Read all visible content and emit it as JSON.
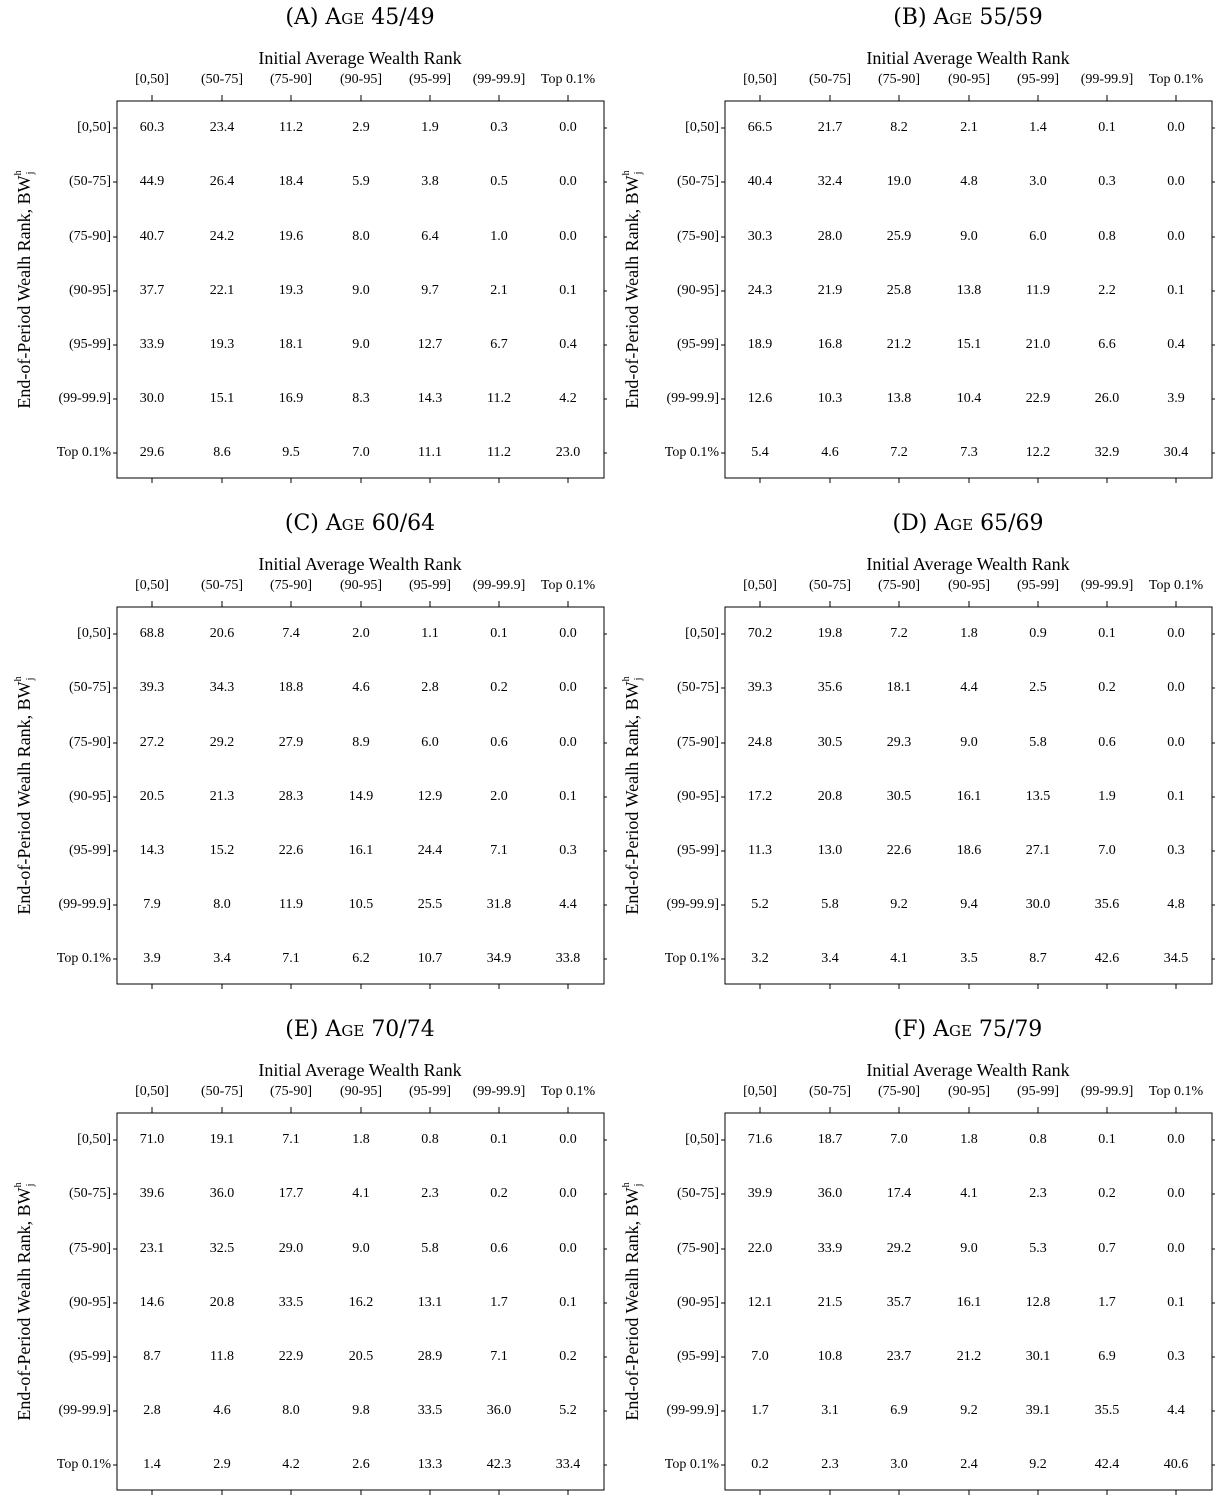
{
  "chart_data": [
    {
      "type": "table",
      "title": "(A) Age 45/49",
      "xlabel": "Initial Average Wealth Rank",
      "ylabel": "End-of-Period Wealh Rank, BW",
      "ylabel_sup": "h",
      "ylabel_sub": "j",
      "columns": [
        "[0,50]",
        "(50-75]",
        "(75-90]",
        "(90-95]",
        "(95-99]",
        "(99-99.9]",
        "Top 0.1%"
      ],
      "rows": [
        "[0,50]",
        "(50-75]",
        "(75-90]",
        "(90-95]",
        "(95-99]",
        "(99-99.9]",
        "Top 0.1%"
      ],
      "values": [
        [
          "60.3",
          "23.4",
          "11.2",
          "2.9",
          "1.9",
          "0.3",
          "0.0"
        ],
        [
          "44.9",
          "26.4",
          "18.4",
          "5.9",
          "3.8",
          "0.5",
          "0.0"
        ],
        [
          "40.7",
          "24.2",
          "19.6",
          "8.0",
          "6.4",
          "1.0",
          "0.0"
        ],
        [
          "37.7",
          "22.1",
          "19.3",
          "9.0",
          "9.7",
          "2.1",
          "0.1"
        ],
        [
          "33.9",
          "19.3",
          "18.1",
          "9.0",
          "12.7",
          "6.7",
          "0.4"
        ],
        [
          "30.0",
          "15.1",
          "16.9",
          "8.3",
          "14.3",
          "11.2",
          "4.2"
        ],
        [
          "29.6",
          "8.6",
          "9.5",
          "7.0",
          "11.1",
          "11.2",
          "23.0"
        ]
      ]
    },
    {
      "type": "table",
      "title": "(B) Age 55/59",
      "xlabel": "Initial Average Wealth Rank",
      "ylabel": "End-of-Period Wealh Rank, BW",
      "ylabel_sup": "h",
      "ylabel_sub": "j",
      "columns": [
        "[0,50]",
        "(50-75]",
        "(75-90]",
        "(90-95]",
        "(95-99]",
        "(99-99.9]",
        "Top 0.1%"
      ],
      "rows": [
        "[0,50]",
        "(50-75]",
        "(75-90]",
        "(90-95]",
        "(95-99]",
        "(99-99.9]",
        "Top 0.1%"
      ],
      "values": [
        [
          "66.5",
          "21.7",
          "8.2",
          "2.1",
          "1.4",
          "0.1",
          "0.0"
        ],
        [
          "40.4",
          "32.4",
          "19.0",
          "4.8",
          "3.0",
          "0.3",
          "0.0"
        ],
        [
          "30.3",
          "28.0",
          "25.9",
          "9.0",
          "6.0",
          "0.8",
          "0.0"
        ],
        [
          "24.3",
          "21.9",
          "25.8",
          "13.8",
          "11.9",
          "2.2",
          "0.1"
        ],
        [
          "18.9",
          "16.8",
          "21.2",
          "15.1",
          "21.0",
          "6.6",
          "0.4"
        ],
        [
          "12.6",
          "10.3",
          "13.8",
          "10.4",
          "22.9",
          "26.0",
          "3.9"
        ],
        [
          "5.4",
          "4.6",
          "7.2",
          "7.3",
          "12.2",
          "32.9",
          "30.4"
        ]
      ]
    },
    {
      "type": "table",
      "title": "(C) Age 60/64",
      "xlabel": "Initial Average Wealth Rank",
      "ylabel": "End-of-Period Wealh Rank, BW",
      "ylabel_sup": "h",
      "ylabel_sub": "j",
      "columns": [
        "[0,50]",
        "(50-75]",
        "(75-90]",
        "(90-95]",
        "(95-99]",
        "(99-99.9]",
        "Top 0.1%"
      ],
      "rows": [
        "[0,50]",
        "(50-75]",
        "(75-90]",
        "(90-95]",
        "(95-99]",
        "(99-99.9]",
        "Top 0.1%"
      ],
      "values": [
        [
          "68.8",
          "20.6",
          "7.4",
          "2.0",
          "1.1",
          "0.1",
          "0.0"
        ],
        [
          "39.3",
          "34.3",
          "18.8",
          "4.6",
          "2.8",
          "0.2",
          "0.0"
        ],
        [
          "27.2",
          "29.2",
          "27.9",
          "8.9",
          "6.0",
          "0.6",
          "0.0"
        ],
        [
          "20.5",
          "21.3",
          "28.3",
          "14.9",
          "12.9",
          "2.0",
          "0.1"
        ],
        [
          "14.3",
          "15.2",
          "22.6",
          "16.1",
          "24.4",
          "7.1",
          "0.3"
        ],
        [
          "7.9",
          "8.0",
          "11.9",
          "10.5",
          "25.5",
          "31.8",
          "4.4"
        ],
        [
          "3.9",
          "3.4",
          "7.1",
          "6.2",
          "10.7",
          "34.9",
          "33.8"
        ]
      ]
    },
    {
      "type": "table",
      "title": "(D) Age 65/69",
      "xlabel": "Initial Average Wealth Rank",
      "ylabel": "End-of-Period Wealh Rank, BW",
      "ylabel_sup": "h",
      "ylabel_sub": "j",
      "columns": [
        "[0,50]",
        "(50-75]",
        "(75-90]",
        "(90-95]",
        "(95-99]",
        "(99-99.9]",
        "Top 0.1%"
      ],
      "rows": [
        "[0,50]",
        "(50-75]",
        "(75-90]",
        "(90-95]",
        "(95-99]",
        "(99-99.9]",
        "Top 0.1%"
      ],
      "values": [
        [
          "70.2",
          "19.8",
          "7.2",
          "1.8",
          "0.9",
          "0.1",
          "0.0"
        ],
        [
          "39.3",
          "35.6",
          "18.1",
          "4.4",
          "2.5",
          "0.2",
          "0.0"
        ],
        [
          "24.8",
          "30.5",
          "29.3",
          "9.0",
          "5.8",
          "0.6",
          "0.0"
        ],
        [
          "17.2",
          "20.8",
          "30.5",
          "16.1",
          "13.5",
          "1.9",
          "0.1"
        ],
        [
          "11.3",
          "13.0",
          "22.6",
          "18.6",
          "27.1",
          "7.0",
          "0.3"
        ],
        [
          "5.2",
          "5.8",
          "9.2",
          "9.4",
          "30.0",
          "35.6",
          "4.8"
        ],
        [
          "3.2",
          "3.4",
          "4.1",
          "3.5",
          "8.7",
          "42.6",
          "34.5"
        ]
      ]
    },
    {
      "type": "table",
      "title": "(E) Age 70/74",
      "xlabel": "Initial Average Wealth Rank",
      "ylabel": "End-of-Period Wealh Rank, BW",
      "ylabel_sup": "h",
      "ylabel_sub": "j",
      "columns": [
        "[0,50]",
        "(50-75]",
        "(75-90]",
        "(90-95]",
        "(95-99]",
        "(99-99.9]",
        "Top 0.1%"
      ],
      "rows": [
        "[0,50]",
        "(50-75]",
        "(75-90]",
        "(90-95]",
        "(95-99]",
        "(99-99.9]",
        "Top 0.1%"
      ],
      "values": [
        [
          "71.0",
          "19.1",
          "7.1",
          "1.8",
          "0.8",
          "0.1",
          "0.0"
        ],
        [
          "39.6",
          "36.0",
          "17.7",
          "4.1",
          "2.3",
          "0.2",
          "0.0"
        ],
        [
          "23.1",
          "32.5",
          "29.0",
          "9.0",
          "5.8",
          "0.6",
          "0.0"
        ],
        [
          "14.6",
          "20.8",
          "33.5",
          "16.2",
          "13.1",
          "1.7",
          "0.1"
        ],
        [
          "8.7",
          "11.8",
          "22.9",
          "20.5",
          "28.9",
          "7.1",
          "0.2"
        ],
        [
          "2.8",
          "4.6",
          "8.0",
          "9.8",
          "33.5",
          "36.0",
          "5.2"
        ],
        [
          "1.4",
          "2.9",
          "4.2",
          "2.6",
          "13.3",
          "42.3",
          "33.4"
        ]
      ]
    },
    {
      "type": "table",
      "title": "(F) Age 75/79",
      "xlabel": "Initial Average Wealth Rank",
      "ylabel": "End-of-Period Wealh Rank, BW",
      "ylabel_sup": "h",
      "ylabel_sub": "j",
      "columns": [
        "[0,50]",
        "(50-75]",
        "(75-90]",
        "(90-95]",
        "(95-99]",
        "(99-99.9]",
        "Top 0.1%"
      ],
      "rows": [
        "[0,50]",
        "(50-75]",
        "(75-90]",
        "(90-95]",
        "(95-99]",
        "(99-99.9]",
        "Top 0.1%"
      ],
      "values": [
        [
          "71.6",
          "18.7",
          "7.0",
          "1.8",
          "0.8",
          "0.1",
          "0.0"
        ],
        [
          "39.9",
          "36.0",
          "17.4",
          "4.1",
          "2.3",
          "0.2",
          "0.0"
        ],
        [
          "22.0",
          "33.9",
          "29.2",
          "9.0",
          "5.3",
          "0.7",
          "0.0"
        ],
        [
          "12.1",
          "21.5",
          "35.7",
          "16.1",
          "12.8",
          "1.7",
          "0.1"
        ],
        [
          "7.0",
          "10.8",
          "23.7",
          "21.2",
          "30.1",
          "6.9",
          "0.3"
        ],
        [
          "1.7",
          "3.1",
          "6.9",
          "9.2",
          "39.1",
          "35.5",
          "4.4"
        ],
        [
          "0.2",
          "2.3",
          "3.0",
          "2.4",
          "9.2",
          "42.4",
          "40.6"
        ]
      ]
    }
  ]
}
